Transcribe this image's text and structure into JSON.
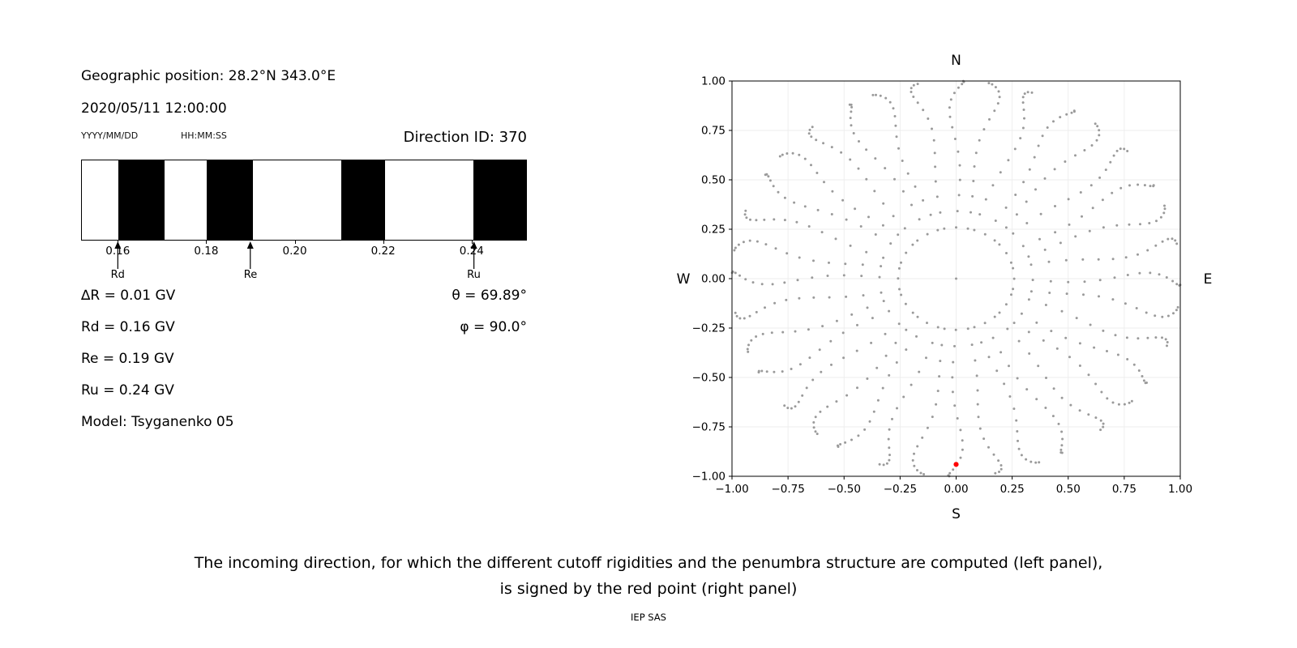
{
  "left_panel": {
    "geo_position": "Geographic position: 28.2°N 343.0°E",
    "datetime": "2020/05/11 12:00:00",
    "date_format": "YYYY/MM/DD",
    "time_format": "HH:MM:SS",
    "direction_id": "Direction ID: 370",
    "info_lines": [
      "∆R = 0.01 GV",
      "Rd = 0.16 GV",
      "Re = 0.19 GV",
      "Ru = 0.24 GV",
      "Model: Tsyganenko 05"
    ],
    "theta": "θ = 69.89°",
    "phi": "φ = 90.0°"
  },
  "chart_data": [
    {
      "id": "penumbra-structure",
      "type": "bar",
      "description": "Penumbra structure: black bands are allowed rigidity intervals between lower cutoff Rd and upper cutoff Ru",
      "xlim": [
        0.1517,
        0.2525
      ],
      "xticks": [
        0.16,
        0.18,
        0.2,
        0.22,
        0.24
      ],
      "xtick_labels": [
        "0.16",
        "0.18",
        "0.20",
        "0.22",
        "0.24"
      ],
      "black_segments": [
        [
          0.16,
          0.1705
        ],
        [
          0.18,
          0.1905
        ],
        [
          0.2105,
          0.2205
        ],
        [
          0.2405,
          0.2525
        ]
      ],
      "band_colors": {
        "allowed": "#000000",
        "forbidden": "#ffffff"
      },
      "annotations": [
        {
          "label": "Rd",
          "x": 0.16
        },
        {
          "label": "Re",
          "x": 0.19
        },
        {
          "label": "Ru",
          "x": 0.2405
        }
      ],
      "values": {
        "delta_R_GV": 0.01,
        "Rd_GV": 0.16,
        "Re_GV": 0.19,
        "Ru_GV": 0.24
      }
    },
    {
      "id": "incoming-directions",
      "type": "scatter",
      "description": "Grid of incoming directions plotted as radial spokes (radius = sin(zenith), one spoke per azimuth); the red point marks the selected direction",
      "xlim": [
        -1,
        1
      ],
      "ylim": [
        -1,
        1
      ],
      "xticks": [
        -1,
        -0.75,
        -0.5,
        -0.25,
        0,
        0.25,
        0.5,
        0.75,
        1
      ],
      "yticks": [
        -1,
        -0.75,
        -0.5,
        -0.25,
        0,
        0.25,
        0.5,
        0.75,
        1
      ],
      "xtick_labels": [
        "−1.00",
        "−0.75",
        "−0.50",
        "−0.25",
        "0.00",
        "0.25",
        "0.50",
        "0.75",
        "1.00"
      ],
      "ytick_labels": [
        "−1.00",
        "−0.75",
        "−0.50",
        "−0.25",
        "0.00",
        "0.25",
        "0.50",
        "0.75",
        "1.00"
      ],
      "grid": true,
      "label_top": "N",
      "label_bottom": "S",
      "label_left": "W",
      "label_right": "E",
      "points_generator": {
        "azimuth_start_deg": 0,
        "azimuth_step_deg": 10,
        "n_azimuths": 36,
        "zenith_angles_deg": [
          15,
          20,
          25,
          30,
          35,
          40,
          45,
          50,
          55,
          60,
          65,
          70,
          75,
          80,
          85,
          90
        ],
        "radius": "sin(zenith)",
        "wobble_deg": 2,
        "color": "#9a9a9a",
        "marker_size_px": 1.5
      },
      "center_point": [
        0,
        0
      ],
      "red_point": {
        "x": 0.0,
        "y": -0.94,
        "color": "#ff0000"
      }
    }
  ],
  "caption": {
    "line1": "The incoming direction, for which the different cutoff rigidities and the penumbra structure are computed (left panel),",
    "line2": "is signed by the red point (right panel)"
  },
  "footer": "IEP SAS"
}
